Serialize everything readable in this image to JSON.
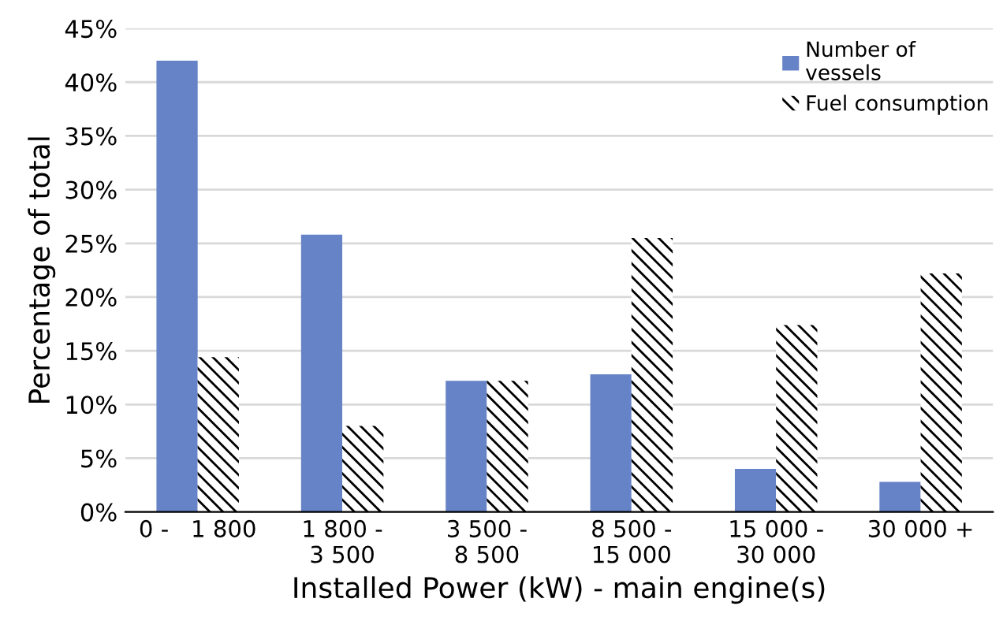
{
  "chart_data": {
    "type": "bar",
    "xlabel": "Installed Power (kW) - main engine(s)",
    "ylabel": "Percentage of total",
    "categories": [
      "0 -   1 800",
      "1 800 -\n3 500",
      "3 500 -\n8 500",
      "8 500 -\n15 000",
      "15 000 -\n30 000",
      "30 000 +"
    ],
    "series": [
      {
        "name": "Number of\nvessels",
        "color": "#6783c7",
        "values": [
          42.0,
          25.8,
          12.2,
          12.8,
          4.0,
          2.8
        ]
      },
      {
        "name": "Fuel consumption",
        "color": "#000000",
        "values": [
          14.4,
          8.0,
          12.2,
          25.5,
          17.4,
          22.2
        ]
      }
    ],
    "ylim": [
      0,
      45
    ],
    "yticks": [
      {
        "value": 0,
        "label": "0%"
      },
      {
        "value": 5,
        "label": "5%"
      },
      {
        "value": 10,
        "label": "10%"
      },
      {
        "value": 15,
        "label": "15%"
      },
      {
        "value": 20,
        "label": "20%"
      },
      {
        "value": 25,
        "label": "25%"
      },
      {
        "value": 30,
        "label": "30%"
      },
      {
        "value": 35,
        "label": "35%"
      },
      {
        "value": 40,
        "label": "40%"
      },
      {
        "value": 45,
        "label": "45%"
      }
    ],
    "grid": "y",
    "legend": "top right"
  }
}
